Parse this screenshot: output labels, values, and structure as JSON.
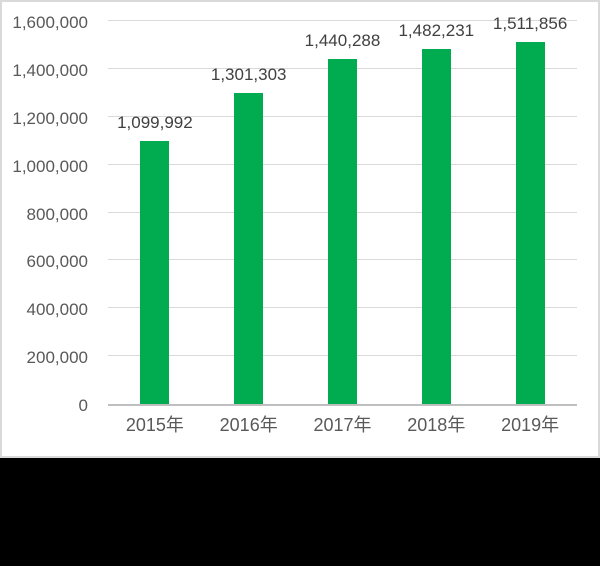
{
  "chart_data": {
    "type": "bar",
    "categories": [
      "2015年",
      "2016年",
      "2017年",
      "2018年",
      "2019年"
    ],
    "values": [
      1099992,
      1301303,
      1440288,
      1482231,
      1511856
    ],
    "data_labels": [
      "1,099,992",
      "1,301,303",
      "1,440,288",
      "1,482,231",
      "1,511,856"
    ],
    "y_ticks": [
      {
        "value": 0,
        "label": "0"
      },
      {
        "value": 200000,
        "label": "200,000"
      },
      {
        "value": 400000,
        "label": "400,000"
      },
      {
        "value": 600000,
        "label": "600,000"
      },
      {
        "value": 800000,
        "label": "800,000"
      },
      {
        "value": 1000000,
        "label": "1,000,000"
      },
      {
        "value": 1200000,
        "label": "1,200,000"
      },
      {
        "value": 1400000,
        "label": "1,400,000"
      },
      {
        "value": 1600000,
        "label": "1,600,000"
      }
    ],
    "ylim": [
      0,
      1600000
    ],
    "xlabel": "",
    "ylabel": "",
    "grid": true,
    "legend_position": "none",
    "colors": {
      "bar": "#00ac4f",
      "gridline": "#d9d9d9",
      "axis_line": "#bfbfbf",
      "tick_text": "#595959",
      "data_label_text": "#404040",
      "chart_bg": "#ffffff",
      "chart_border": "#d9d9d9",
      "letterbox": "#000000"
    }
  }
}
